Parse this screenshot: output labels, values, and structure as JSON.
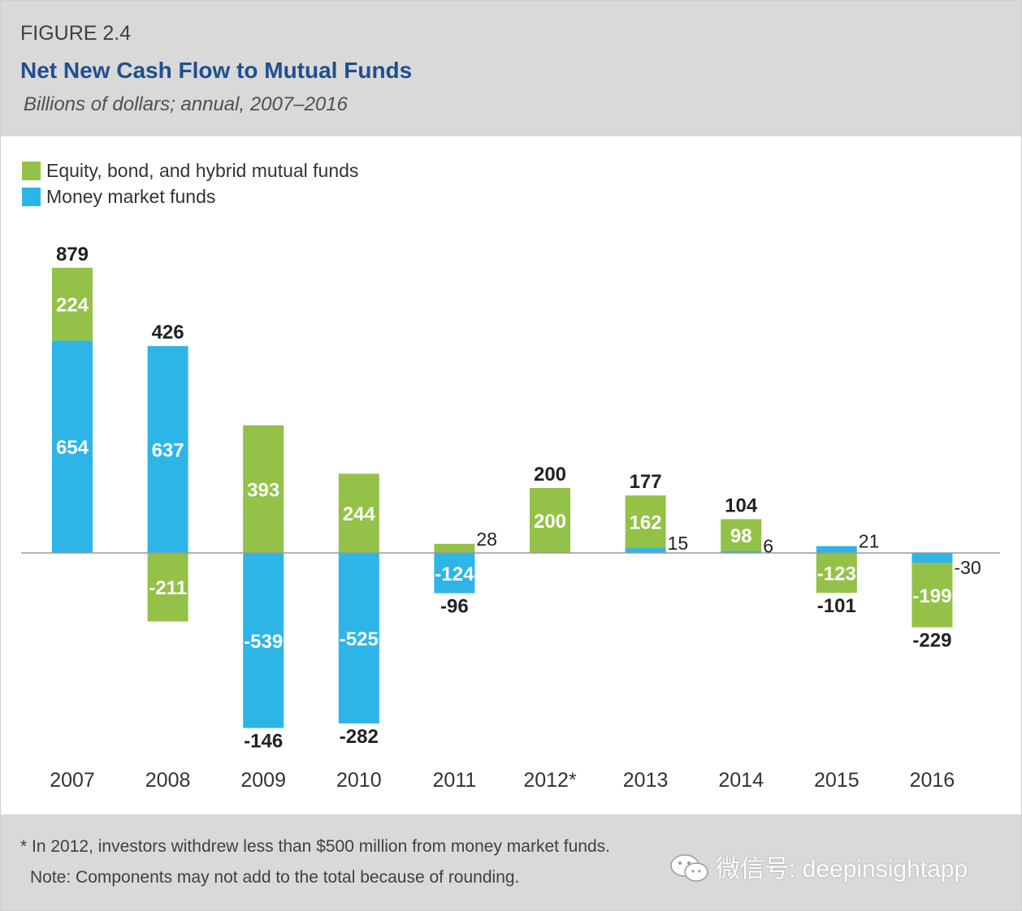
{
  "figure": {
    "label": "FIGURE 2.4",
    "title": "Net New Cash Flow to Mutual Funds",
    "subtitle": "Billions of dollars; annual, 2007–2016"
  },
  "legend": [
    {
      "label": "Equity, bond, and hybrid mutual funds",
      "color": "#94c147"
    },
    {
      "label": "Money market funds",
      "color": "#2db5e8"
    }
  ],
  "chart_data": {
    "type": "bar",
    "stacked": true,
    "categories": [
      "2007",
      "2008",
      "2009",
      "2010",
      "2011",
      "2012*",
      "2013",
      "2014",
      "2015",
      "2016"
    ],
    "series": [
      {
        "name": "Equity, bond, and hybrid mutual funds",
        "color": "#94c147",
        "values": [
          224,
          -211,
          393,
          244,
          28,
          200,
          162,
          98,
          -123,
          -199
        ]
      },
      {
        "name": "Money market funds",
        "color": "#2db5e8",
        "values": [
          654,
          637,
          -539,
          -525,
          -124,
          0,
          15,
          6,
          21,
          -30
        ]
      }
    ],
    "totals": [
      879,
      426,
      -146,
      -282,
      -96,
      200,
      177,
      104,
      -101,
      -229
    ],
    "ylim": [
      -582,
      980
    ],
    "grid": false,
    "legend_position": "top-left"
  },
  "footnotes": {
    "note1": "* In 2012, investors withdrew less than $500 million from money market funds.",
    "note2": "Note: Components may not add to the total because of rounding."
  },
  "watermark": {
    "text": "微信号: deepinsightapp",
    "icon": "wechat-icon"
  }
}
